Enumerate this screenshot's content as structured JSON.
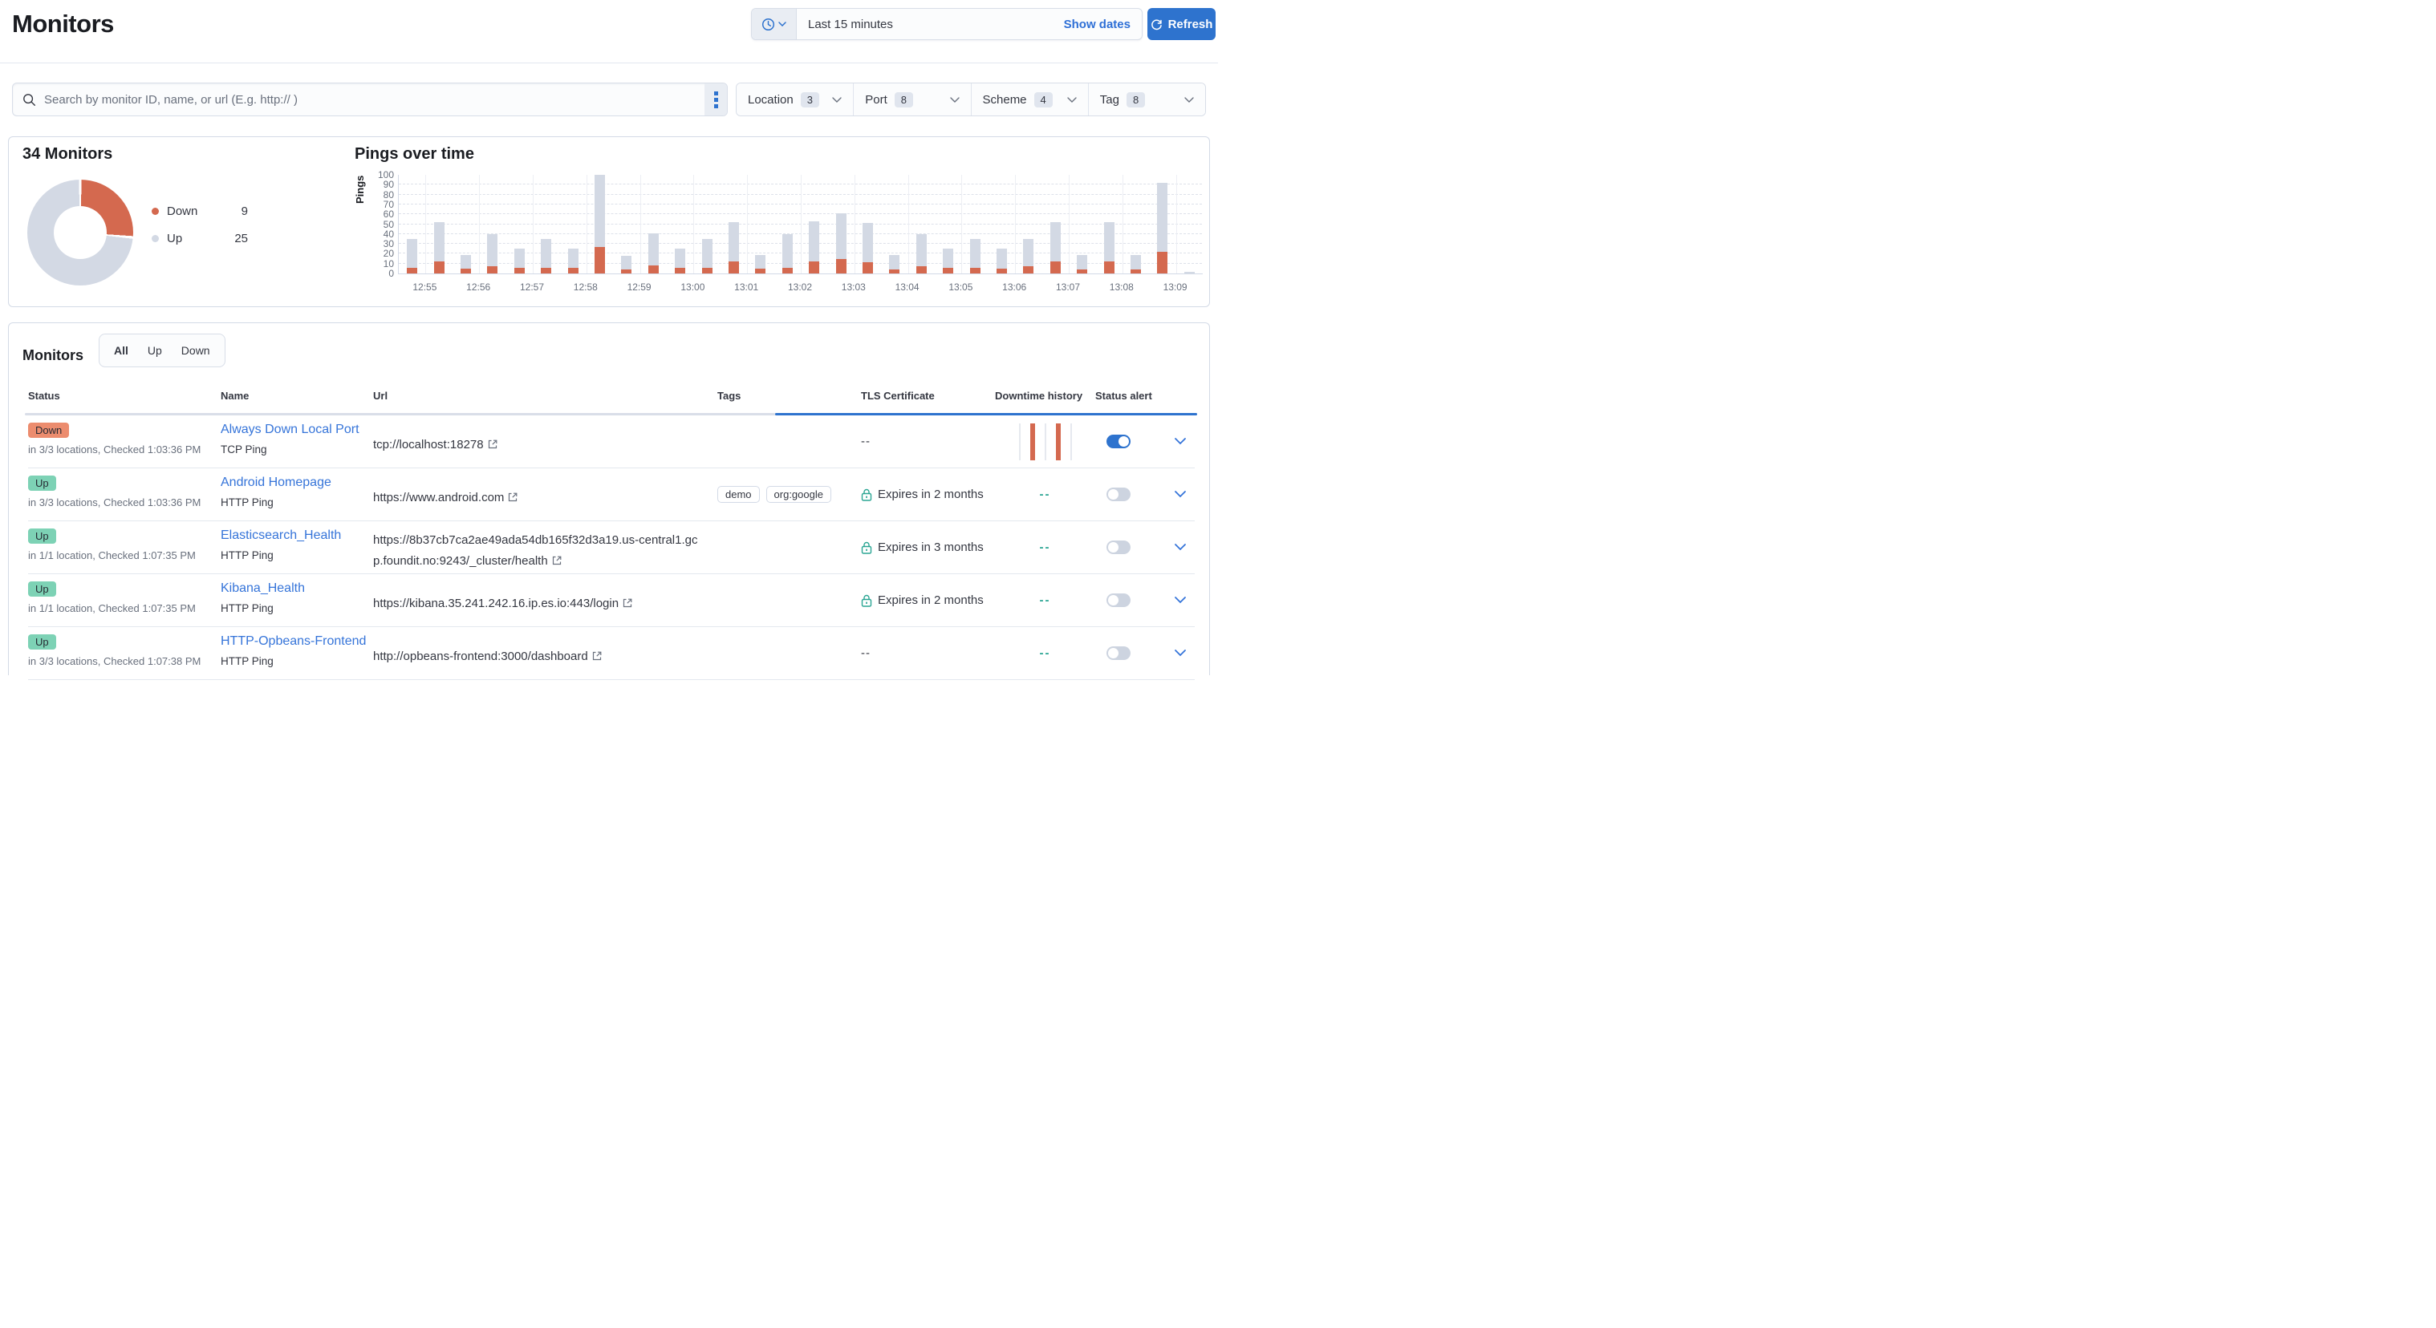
{
  "header": {
    "title": "Monitors",
    "time_range": "Last 15 minutes",
    "show_dates_label": "Show dates",
    "refresh_label": "Refresh"
  },
  "search": {
    "placeholder": "Search by monitor ID, name, or url (E.g. http:// )"
  },
  "filters": [
    {
      "label": "Location",
      "count": "3"
    },
    {
      "label": "Port",
      "count": "8"
    },
    {
      "label": "Scheme",
      "count": "4"
    },
    {
      "label": "Tag",
      "count": "8"
    }
  ],
  "icons": {
    "quick_select": "clock-icon",
    "search": "magnifier-icon",
    "query_menu": "vertical-dots-icon",
    "refresh": "refresh-arrow-icon",
    "tls": "padlock-icon",
    "url": "external-link-icon",
    "expand": "chevron-down-icon"
  },
  "colors": {
    "accent_blue": "#2e73ce",
    "link_blue": "#3574d9",
    "down_orange": "#d4694f",
    "up_gray": "#d3d9e4",
    "badge_down": "#ec8c6e",
    "badge_up": "#7dd2b5",
    "teal": "#2aa593"
  },
  "chart_data": [
    {
      "type": "pie",
      "donut": true,
      "title": "34 Monitors",
      "labels": [
        "Down",
        "Up"
      ],
      "values": [
        9,
        25
      ],
      "colors": [
        "#d4694f",
        "#d3d9e4"
      ],
      "legend_position": "right"
    },
    {
      "type": "bar",
      "stacked": true,
      "title": "Pings over time",
      "xlabel": "",
      "ylabel": "Pings",
      "ylim": [
        0,
        100
      ],
      "grid": true,
      "x_ticks": [
        "12:55",
        "12:56",
        "12:57",
        "12:58",
        "12:59",
        "13:00",
        "13:01",
        "13:02",
        "13:03",
        "13:04",
        "13:05",
        "13:06",
        "13:07",
        "13:08",
        "13:09"
      ],
      "bucket_interval_seconds": 30,
      "series": [
        {
          "name": "Down",
          "color": "#d4694f",
          "values": [
            6,
            12,
            5,
            7,
            6,
            6,
            6,
            27,
            4,
            8,
            6,
            6,
            12,
            5,
            6,
            12,
            15,
            11,
            4,
            7,
            6,
            6,
            5,
            7,
            12,
            4,
            12,
            4,
            22,
            0
          ]
        },
        {
          "name": "Up",
          "color": "#d3d9e4",
          "values": [
            29,
            40,
            14,
            33,
            19,
            29,
            19,
            80,
            14,
            33,
            19,
            29,
            40,
            14,
            34,
            41,
            46,
            40,
            15,
            33,
            19,
            29,
            20,
            28,
            40,
            15,
            40,
            15,
            70,
            2
          ]
        }
      ]
    }
  ],
  "table": {
    "section_title": "Monitors",
    "tabs": [
      "All",
      "Up",
      "Down"
    ],
    "active_tab": "All",
    "columns": [
      "Status",
      "Name",
      "Url",
      "Tags",
      "TLS Certificate",
      "Downtime history",
      "Status alert"
    ],
    "empty_value": "--",
    "rows": [
      {
        "status": "Down",
        "checked": "in 3/3 locations, Checked 1:03:36 PM",
        "name": "Always Down Local Port",
        "type": "TCP Ping",
        "url": "tcp://localhost:18278",
        "tags": [],
        "tls": "--",
        "downtime": "bars",
        "alert_on": true
      },
      {
        "status": "Up",
        "checked": "in 3/3 locations, Checked 1:03:36 PM",
        "name": "Android Homepage",
        "type": "HTTP Ping",
        "url": "https://www.android.com",
        "tags": [
          "demo",
          "org:google"
        ],
        "tls": "Expires in 2 months",
        "downtime": "--",
        "alert_on": false
      },
      {
        "status": "Up",
        "checked": "in 1/1 location, Checked 1:07:35 PM",
        "name": "Elasticsearch_Health",
        "type": "HTTP Ping",
        "url": "https://8b37cb7ca2ae49ada54db165f32d3a19.us-central1.gcp.foundit.no:9243/_cluster/health",
        "tags": [],
        "tls": "Expires in 3 months",
        "downtime": "--",
        "alert_on": false
      },
      {
        "status": "Up",
        "checked": "in 1/1 location, Checked 1:07:35 PM",
        "name": "Kibana_Health",
        "type": "HTTP Ping",
        "url": "https://kibana.35.241.242.16.ip.es.io:443/login",
        "tags": [],
        "tls": "Expires in 2 months",
        "downtime": "--",
        "alert_on": false
      },
      {
        "status": "Up",
        "checked": "in 3/3 locations, Checked 1:07:38 PM",
        "name": "HTTP-Opbeans-Frontend",
        "type": "HTTP Ping",
        "url": "http://opbeans-frontend:3000/dashboard",
        "tags": [],
        "tls": "--",
        "downtime": "--",
        "alert_on": false
      }
    ]
  }
}
